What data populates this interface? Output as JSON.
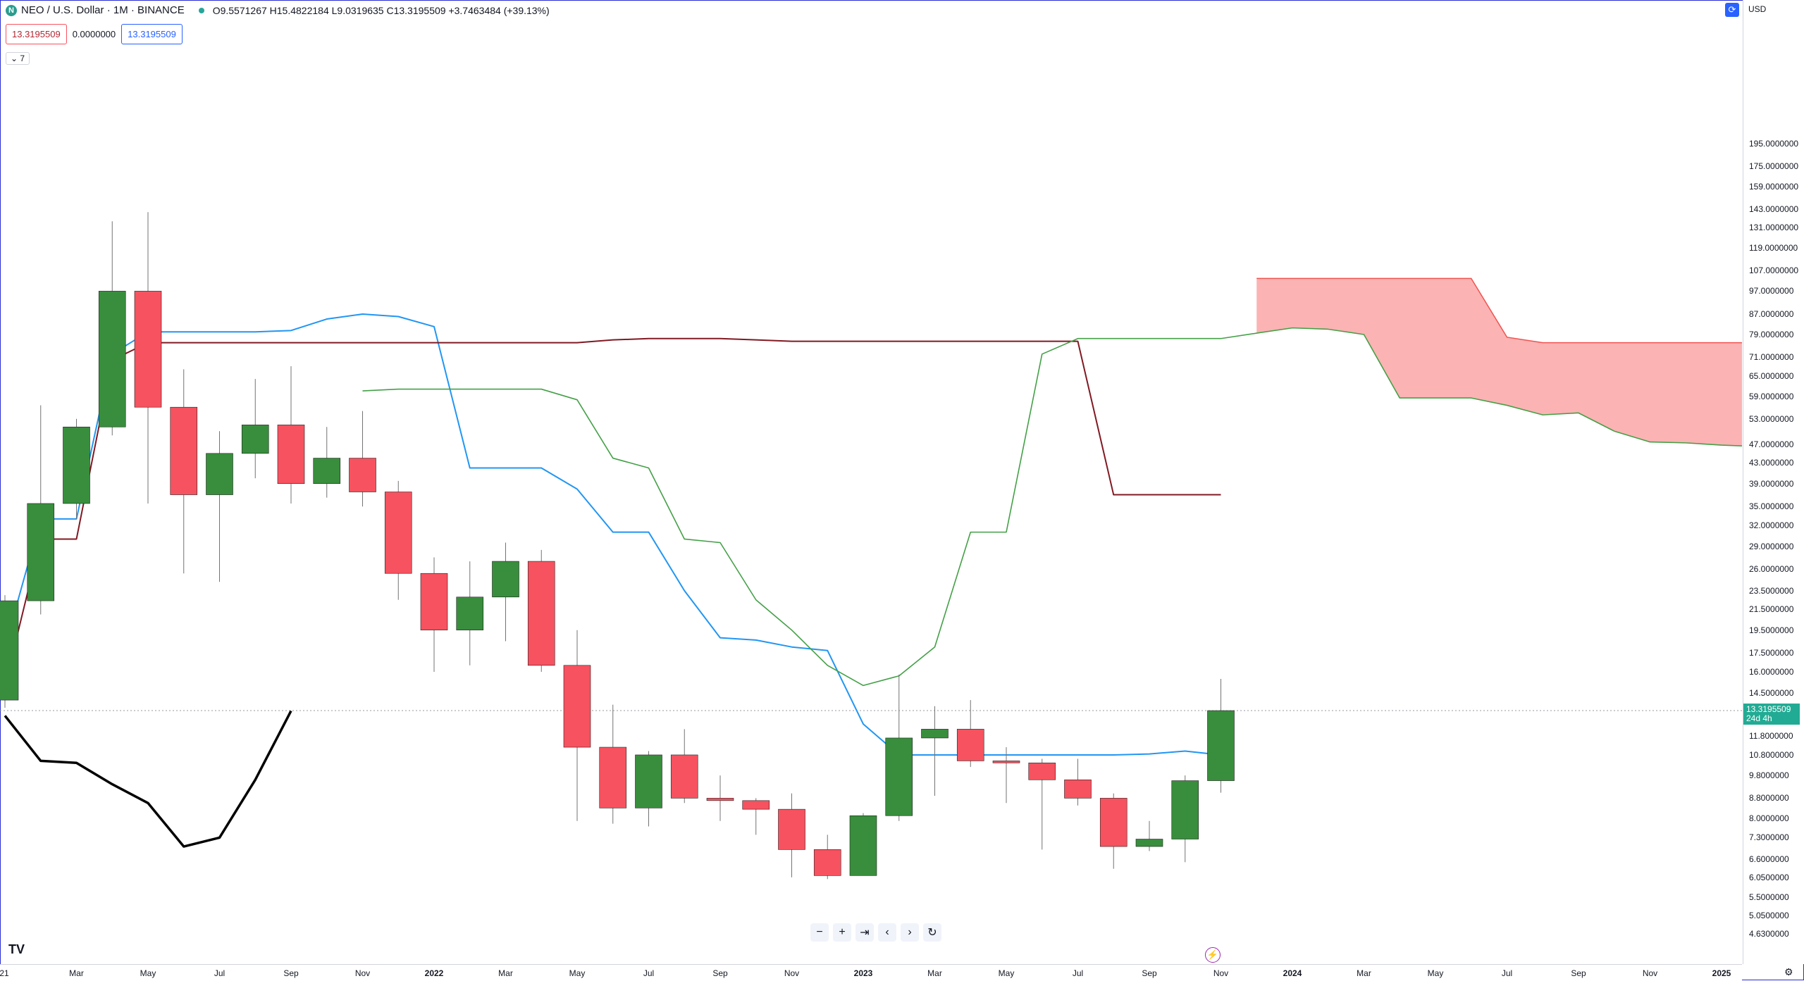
{
  "header": {
    "symbol_icon": "N",
    "symbol_title": "NEO / U.S. Dollar · 1M · BINANCE",
    "ohlc": "O9.5571267  H15.4822184  L9.0319635  C13.3195509  +3.7463484 (+39.13%)",
    "indicator_values": [
      "13.3195509",
      "0.0000000",
      "13.3195509"
    ],
    "collapse_label": "7",
    "currency": "USD"
  },
  "current_price_label": {
    "price": "13.3195509",
    "countdown": "24d 4h"
  },
  "colors": {
    "up": "#388e3c",
    "down": "#f7525f",
    "tenkan": "#2196f3",
    "kijun": "#801922",
    "lagging": "#43a047",
    "chikou": "#000000",
    "cloud": "#fbb3b3",
    "cloud_edge": "#ef5350"
  },
  "chart_data": {
    "type": "candlestick",
    "title": "NEO / U.S. Dollar · 1M · BINANCE",
    "x_ticks": [
      "21",
      "Mar",
      "May",
      "Jul",
      "Sep",
      "Nov",
      "2022",
      "Mar",
      "May",
      "Jul",
      "Sep",
      "Nov",
      "2023",
      "Mar",
      "May",
      "Jul",
      "Sep",
      "Nov",
      "2024",
      "Mar",
      "May",
      "Jul",
      "Sep",
      "Nov",
      "2025"
    ],
    "y_ticks": [
      "195.0000000",
      "175.0000000",
      "159.0000000",
      "143.0000000",
      "131.0000000",
      "119.0000000",
      "107.0000000",
      "97.0000000",
      "87.0000000",
      "79.0000000",
      "71.0000000",
      "65.0000000",
      "59.0000000",
      "53.0000000",
      "47.0000000",
      "43.0000000",
      "39.0000000",
      "35.0000000",
      "32.0000000",
      "29.0000000",
      "26.0000000",
      "23.5000000",
      "21.5000000",
      "19.5000000",
      "17.5000000",
      "16.0000000",
      "14.5000000",
      "11.8000000",
      "10.8000000",
      "9.8000000",
      "8.8000000",
      "8.0000000",
      "7.3000000",
      "6.6000000",
      "6.0500000",
      "5.5000000",
      "5.0500000",
      "4.6300000"
    ],
    "y_scale": "log",
    "candles": [
      {
        "t": "2021-01",
        "o": 14.0,
        "h": 23.0,
        "l": 13.5,
        "c": 22.4
      },
      {
        "t": "2021-02",
        "o": 22.4,
        "h": 56.5,
        "l": 21.0,
        "c": 35.5
      },
      {
        "t": "2021-03",
        "o": 35.5,
        "h": 53.0,
        "l": 33.0,
        "c": 51.0
      },
      {
        "t": "2021-04",
        "o": 51.0,
        "h": 135.0,
        "l": 49.0,
        "c": 97.0
      },
      {
        "t": "2021-05",
        "o": 97.0,
        "h": 141.0,
        "l": 35.5,
        "c": 56.0
      },
      {
        "t": "2021-06",
        "o": 56.0,
        "h": 67.0,
        "l": 25.5,
        "c": 37.0
      },
      {
        "t": "2021-07",
        "o": 37.0,
        "h": 50.0,
        "l": 24.5,
        "c": 45.0
      },
      {
        "t": "2021-08",
        "o": 45.0,
        "h": 64.0,
        "l": 40.0,
        "c": 51.5
      },
      {
        "t": "2021-09",
        "o": 51.5,
        "h": 68.0,
        "l": 35.5,
        "c": 39.0
      },
      {
        "t": "2021-10",
        "o": 39.0,
        "h": 51.0,
        "l": 36.5,
        "c": 44.0
      },
      {
        "t": "2021-11",
        "o": 44.0,
        "h": 55.0,
        "l": 35.0,
        "c": 37.5
      },
      {
        "t": "2021-12",
        "o": 37.5,
        "h": 39.5,
        "l": 22.5,
        "c": 25.5
      },
      {
        "t": "2022-01",
        "o": 25.5,
        "h": 27.5,
        "l": 16.0,
        "c": 19.5
      },
      {
        "t": "2022-02",
        "o": 19.5,
        "h": 27.0,
        "l": 16.5,
        "c": 22.8
      },
      {
        "t": "2022-03",
        "o": 22.8,
        "h": 29.5,
        "l": 18.5,
        "c": 27.0
      },
      {
        "t": "2022-04",
        "o": 27.0,
        "h": 28.5,
        "l": 16.0,
        "c": 16.5
      },
      {
        "t": "2022-05",
        "o": 16.5,
        "h": 19.5,
        "l": 7.9,
        "c": 11.2
      },
      {
        "t": "2022-06",
        "o": 11.2,
        "h": 13.7,
        "l": 7.8,
        "c": 8.4
      },
      {
        "t": "2022-07",
        "o": 8.4,
        "h": 11.0,
        "l": 7.7,
        "c": 10.8
      },
      {
        "t": "2022-08",
        "o": 10.8,
        "h": 12.2,
        "l": 8.6,
        "c": 8.8
      },
      {
        "t": "2022-09",
        "o": 8.8,
        "h": 9.8,
        "l": 7.9,
        "c": 8.7
      },
      {
        "t": "2022-10",
        "o": 8.7,
        "h": 8.8,
        "l": 7.4,
        "c": 8.35
      },
      {
        "t": "2022-11",
        "o": 8.35,
        "h": 9.0,
        "l": 6.05,
        "c": 6.9
      },
      {
        "t": "2022-12",
        "o": 6.9,
        "h": 7.4,
        "l": 6.0,
        "c": 6.1
      },
      {
        "t": "2023-01",
        "o": 6.1,
        "h": 8.2,
        "l": 6.1,
        "c": 8.1
      },
      {
        "t": "2023-02",
        "o": 8.1,
        "h": 15.8,
        "l": 7.9,
        "c": 11.7
      },
      {
        "t": "2023-03",
        "o": 11.7,
        "h": 13.6,
        "l": 8.9,
        "c": 12.2
      },
      {
        "t": "2023-04",
        "o": 12.2,
        "h": 14.0,
        "l": 10.2,
        "c": 10.5
      },
      {
        "t": "2023-05",
        "o": 10.5,
        "h": 11.2,
        "l": 8.6,
        "c": 10.4
      },
      {
        "t": "2023-06",
        "o": 10.4,
        "h": 10.6,
        "l": 6.9,
        "c": 9.6
      },
      {
        "t": "2023-07",
        "o": 9.6,
        "h": 10.6,
        "l": 8.5,
        "c": 8.8
      },
      {
        "t": "2023-08",
        "o": 8.8,
        "h": 9.0,
        "l": 6.3,
        "c": 7.0
      },
      {
        "t": "2023-09",
        "o": 7.0,
        "h": 7.9,
        "l": 6.85,
        "c": 7.25
      },
      {
        "t": "2023-10",
        "o": 7.25,
        "h": 9.8,
        "l": 6.5,
        "c": 9.56
      },
      {
        "t": "2023-11",
        "o": 9.56,
        "h": 15.48,
        "l": 9.03,
        "c": 13.32
      }
    ],
    "series": [
      {
        "name": "",
        "role": "tenkan",
        "points": [
          [
            "2021-01",
            18.0
          ],
          [
            "2021-02",
            33.0
          ],
          [
            "2021-03",
            33.0
          ],
          [
            "2021-04",
            72.0
          ],
          [
            "2021-05",
            80.0
          ],
          [
            "2021-06",
            80.0
          ],
          [
            "2021-07",
            80.0
          ],
          [
            "2021-08",
            80.0
          ],
          [
            "2021-09",
            80.5
          ],
          [
            "2021-10",
            85.0
          ],
          [
            "2021-11",
            87.0
          ],
          [
            "2021-12",
            86.0
          ],
          [
            "2022-01",
            82.0
          ],
          [
            "2022-02",
            42.0
          ],
          [
            "2022-03",
            42.0
          ],
          [
            "2022-04",
            42.0
          ],
          [
            "2022-05",
            38.0
          ],
          [
            "2022-06",
            31.0
          ],
          [
            "2022-07",
            31.0
          ],
          [
            "2022-08",
            23.5
          ],
          [
            "2022-09",
            18.8
          ],
          [
            "2022-10",
            18.6
          ],
          [
            "2022-11",
            18.0
          ],
          [
            "2022-12",
            17.7
          ],
          [
            "2023-01",
            12.5
          ],
          [
            "2023-02",
            10.8
          ],
          [
            "2023-03",
            10.8
          ],
          [
            "2023-04",
            10.8
          ],
          [
            "2023-05",
            10.8
          ],
          [
            "2023-06",
            10.8
          ],
          [
            "2023-07",
            10.8
          ],
          [
            "2023-08",
            10.8
          ],
          [
            "2023-09",
            10.85
          ],
          [
            "2023-10",
            11.0
          ],
          [
            "2023-11",
            10.8
          ]
        ]
      },
      {
        "name": "",
        "role": "kijun",
        "points": [
          [
            "2021-01",
            15.0
          ],
          [
            "2021-02",
            30.0
          ],
          [
            "2021-03",
            30.0
          ],
          [
            "2021-04",
            70.0
          ],
          [
            "2021-05",
            76.0
          ],
          [
            "2021-06",
            76.0
          ],
          [
            "2021-07",
            76.0
          ],
          [
            "2021-08",
            76.0
          ],
          [
            "2021-09",
            76.0
          ],
          [
            "2021-10",
            76.0
          ],
          [
            "2021-11",
            76.0
          ],
          [
            "2021-12",
            76.0
          ],
          [
            "2022-01",
            76.0
          ],
          [
            "2022-02",
            76.0
          ],
          [
            "2022-03",
            76.0
          ],
          [
            "2022-04",
            76.0
          ],
          [
            "2022-05",
            76.0
          ],
          [
            "2022-06",
            77.0
          ],
          [
            "2022-07",
            77.5
          ],
          [
            "2022-08",
            77.5
          ],
          [
            "2022-09",
            77.5
          ],
          [
            "2022-10",
            77.0
          ],
          [
            "2022-11",
            76.5
          ],
          [
            "2022-12",
            76.5
          ],
          [
            "2023-01",
            76.5
          ],
          [
            "2023-02",
            76.5
          ],
          [
            "2023-03",
            76.5
          ],
          [
            "2023-04",
            76.5
          ],
          [
            "2023-05",
            76.5
          ],
          [
            "2023-06",
            76.5
          ],
          [
            "2023-07",
            76.5
          ],
          [
            "2023-08",
            37.0
          ],
          [
            "2023-09",
            37.0
          ],
          [
            "2023-10",
            37.0
          ],
          [
            "2023-11",
            37.0
          ]
        ]
      },
      {
        "name": "",
        "role": "lagging_green",
        "points": [
          [
            "2021-11",
            60.5
          ],
          [
            "2021-12",
            61.0
          ],
          [
            "2022-01",
            61.0
          ],
          [
            "2022-02",
            61.0
          ],
          [
            "2022-03",
            61.0
          ],
          [
            "2022-04",
            61.0
          ],
          [
            "2022-05",
            58.0
          ],
          [
            "2022-06",
            44.0
          ],
          [
            "2022-07",
            42.0
          ],
          [
            "2022-08",
            30.0
          ],
          [
            "2022-09",
            29.5
          ],
          [
            "2022-10",
            22.5
          ],
          [
            "2022-11",
            19.5
          ],
          [
            "2022-12",
            16.5
          ],
          [
            "2023-01",
            15.0
          ],
          [
            "2023-02",
            15.7
          ],
          [
            "2023-03",
            18.0
          ],
          [
            "2023-04",
            31.0
          ],
          [
            "2023-05",
            31.0
          ],
          [
            "2023-06",
            72.0
          ],
          [
            "2023-07",
            77.5
          ],
          [
            "2023-08",
            77.5
          ],
          [
            "2023-09",
            77.5
          ],
          [
            "2023-10",
            77.5
          ],
          [
            "2023-11",
            77.5
          ],
          [
            "2023-12",
            79.5
          ],
          [
            "2024-01",
            81.5
          ],
          [
            "2024-02",
            81.0
          ],
          [
            "2024-03",
            79.0
          ],
          [
            "2024-04",
            58.5
          ],
          [
            "2024-05",
            58.5
          ],
          [
            "2024-06",
            58.5
          ],
          [
            "2024-07",
            56.5
          ],
          [
            "2024-08",
            54.0
          ],
          [
            "2024-09",
            54.5
          ],
          [
            "2024-10",
            50.0
          ],
          [
            "2024-11",
            47.5
          ],
          [
            "2024-12",
            47.3
          ],
          [
            "2025-01",
            46.8
          ],
          [
            "2025-02",
            46.5
          ]
        ]
      },
      {
        "name": "",
        "role": "chikou",
        "points": [
          [
            "2021-01",
            13.0
          ],
          [
            "2021-02",
            10.5
          ],
          [
            "2021-03",
            10.4
          ],
          [
            "2021-04",
            9.4
          ],
          [
            "2021-05",
            8.6
          ],
          [
            "2021-06",
            7.0
          ],
          [
            "2021-07",
            7.3
          ],
          [
            "2021-08",
            9.6
          ],
          [
            "2021-09",
            13.3
          ]
        ]
      }
    ],
    "cloud": {
      "upper_points": [
        [
          "2023-12",
          103.0
        ],
        [
          "2024-01",
          103.0
        ],
        [
          "2024-02",
          103.0
        ],
        [
          "2024-03",
          103.0
        ],
        [
          "2024-04",
          103.0
        ],
        [
          "2024-05",
          103.0
        ],
        [
          "2024-06",
          103.0
        ],
        [
          "2024-07",
          78.0
        ],
        [
          "2024-08",
          76.0
        ],
        [
          "2024-09",
          76.0
        ],
        [
          "2024-10",
          76.0
        ],
        [
          "2024-11",
          76.0
        ],
        [
          "2024-12",
          76.0
        ],
        [
          "2025-01",
          76.0
        ],
        [
          "2025-02",
          76.0
        ]
      ]
    },
    "current_price": 13.3195509
  }
}
